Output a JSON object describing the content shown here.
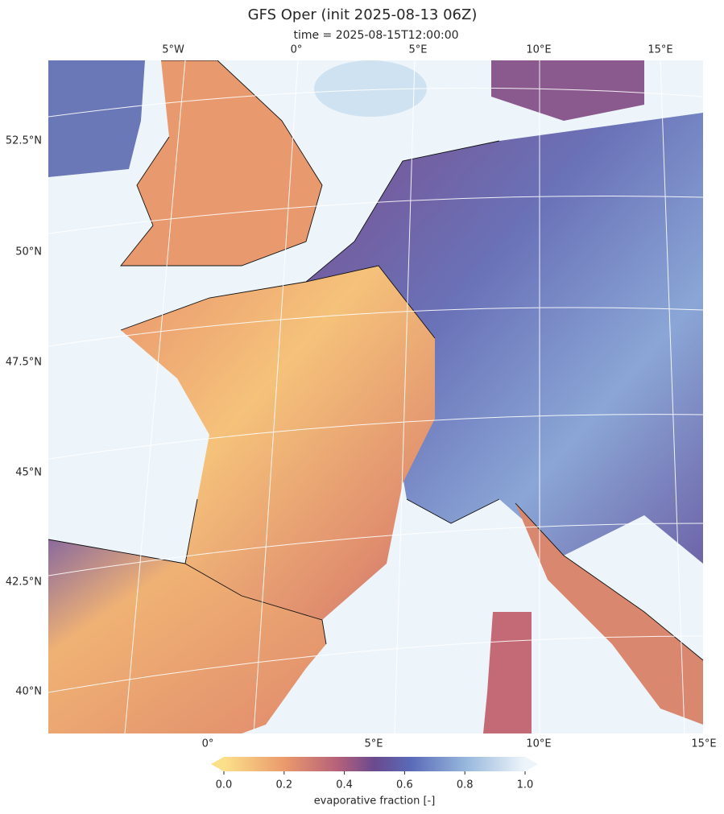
{
  "title": "GFS Oper (init 2025-08-13 06Z)",
  "subtitle": "time = 2025-08-15T12:00:00",
  "top_lon_labels": [
    "5°W",
    "0°",
    "5°E",
    "10°E",
    "15°E"
  ],
  "bottom_lon_labels": [
    "0°",
    "5°E",
    "10°E",
    "15°E"
  ],
  "lat_labels": [
    "52.5°N",
    "50°N",
    "47.5°N",
    "45°N",
    "42.5°N",
    "40°N"
  ],
  "colorbar": {
    "label": "evaporative fraction [-]",
    "lim": [
      0,
      1
    ],
    "ticks": [
      {
        "value": 0,
        "label": "0.0"
      },
      0.2,
      0.4,
      0.6,
      0.8,
      {
        "value": 1,
        "label": "1.0"
      }
    ]
  }
}
